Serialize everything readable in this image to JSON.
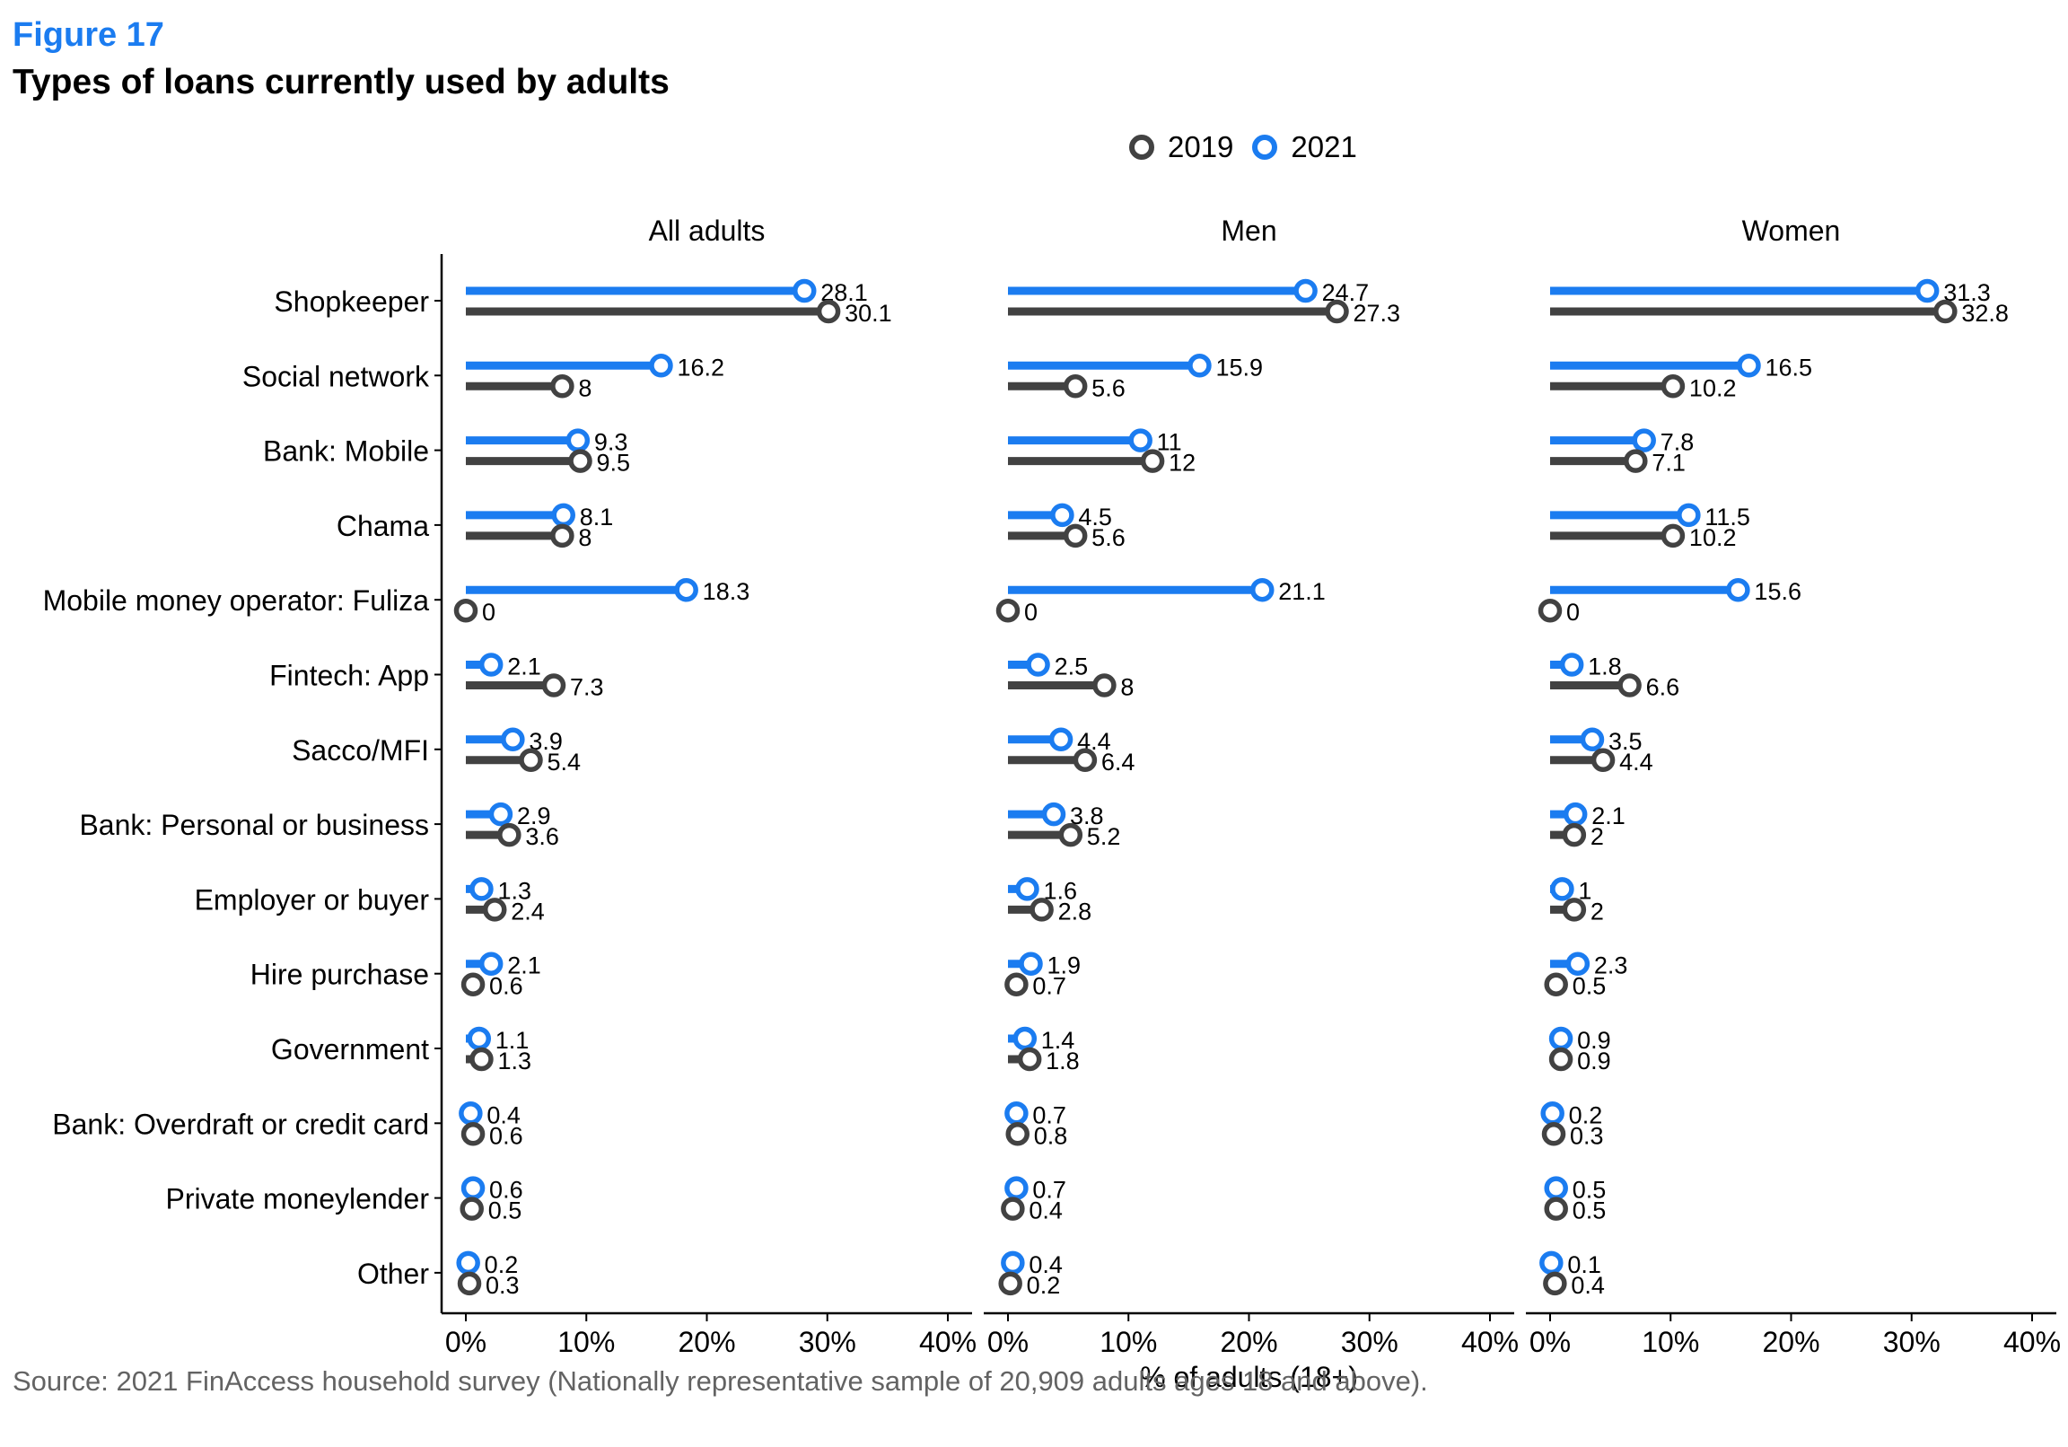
{
  "header": {
    "figure_label": "Figure 17",
    "title": "Types of loans currently used by adults"
  },
  "legend": [
    {
      "label": "2019",
      "color": "#424242"
    },
    {
      "label": "2021",
      "color": "#1b7cf0"
    }
  ],
  "source": "Source: 2021 FinAccess household survey (Nationally representative sample of 20,909 adults ages 18 and above).",
  "chart_data": {
    "type": "dumbbell",
    "title": "Types of loans currently used by adults",
    "xlabel": "% of adults (18+)",
    "xlim": [
      0,
      40
    ],
    "xticks": [
      "0%",
      "10%",
      "20%",
      "30%",
      "40%"
    ],
    "grid": false,
    "legend_position": "top",
    "categories": [
      "Shopkeeper",
      "Social network",
      "Bank: Mobile",
      "Chama",
      "Mobile money operator: Fuliza",
      "Fintech: App",
      "Sacco/MFI",
      "Bank: Personal or business",
      "Employer or buyer",
      "Hire purchase",
      "Government",
      "Bank: Overdraft or credit card",
      "Private moneylender",
      "Other"
    ],
    "panels": [
      {
        "name": "All adults",
        "series": [
          {
            "name": "2019",
            "values": [
              30.1,
              8,
              9.5,
              8,
              0,
              7.3,
              5.4,
              3.6,
              2.4,
              0.6,
              1.3,
              0.6,
              0.5,
              0.3
            ],
            "labels": [
              "30.1",
              "8",
              "9.5",
              "8",
              "0",
              "7.3",
              "5.4",
              "3.6",
              "2.4",
              "0.6",
              "1.3",
              "0.6",
              "0.5",
              "0.3"
            ]
          },
          {
            "name": "2021",
            "values": [
              28.1,
              16.2,
              9.3,
              8.1,
              18.3,
              2.1,
              3.9,
              2.9,
              1.3,
              2.1,
              1.1,
              0.4,
              0.6,
              0.2
            ],
            "labels": [
              "28.1",
              "16.2",
              "9.3",
              "8.1",
              "18.3",
              "2.1",
              "3.9",
              "2.9",
              "1.3",
              "2.1",
              "1.1",
              "0.4",
              "0.6",
              "0.2"
            ]
          }
        ]
      },
      {
        "name": "Men",
        "series": [
          {
            "name": "2019",
            "values": [
              27.3,
              5.6,
              12,
              5.6,
              0,
              8,
              6.4,
              5.2,
              2.8,
              0.7,
              1.8,
              0.8,
              0.4,
              0.2
            ],
            "labels": [
              "27.3",
              "5.6",
              "12",
              "5.6",
              "0",
              "8",
              "6.4",
              "5.2",
              "2.8",
              "0.7",
              "1.8",
              "0.8",
              "0.4",
              "0.2"
            ]
          },
          {
            "name": "2021",
            "values": [
              24.7,
              15.9,
              11,
              4.5,
              21.1,
              2.5,
              4.4,
              3.8,
              1.6,
              1.9,
              1.4,
              0.7,
              0.7,
              0.4
            ],
            "labels": [
              "24.7",
              "15.9",
              "11",
              "4.5",
              "21.1",
              "2.5",
              "4.4",
              "3.8",
              "1.6",
              "1.9",
              "1.4",
              "0.7",
              "0.7",
              "0.4"
            ]
          }
        ]
      },
      {
        "name": "Women",
        "series": [
          {
            "name": "2019",
            "values": [
              32.8,
              10.2,
              7.1,
              10.2,
              0,
              6.6,
              4.4,
              2,
              2,
              0.5,
              0.9,
              0.3,
              0.5,
              0.4
            ],
            "labels": [
              "32.8",
              "10.2",
              "7.1",
              "10.2",
              "0",
              "6.6",
              "4.4",
              "2",
              "2",
              "0.5",
              "0.9",
              "0.3",
              "0.5",
              "0.4"
            ]
          },
          {
            "name": "2021",
            "values": [
              31.3,
              16.5,
              7.8,
              11.5,
              15.6,
              1.8,
              3.5,
              2.1,
              1,
              2.3,
              0.9,
              0.2,
              0.5,
              0.1
            ],
            "labels": [
              "31.3",
              "16.5",
              "7.8",
              "11.5",
              "15.6",
              "1.8",
              "3.5",
              "2.1",
              "1",
              "2.3",
              "0.9",
              "0.2",
              "0.5",
              "0.1"
            ]
          }
        ]
      }
    ]
  }
}
